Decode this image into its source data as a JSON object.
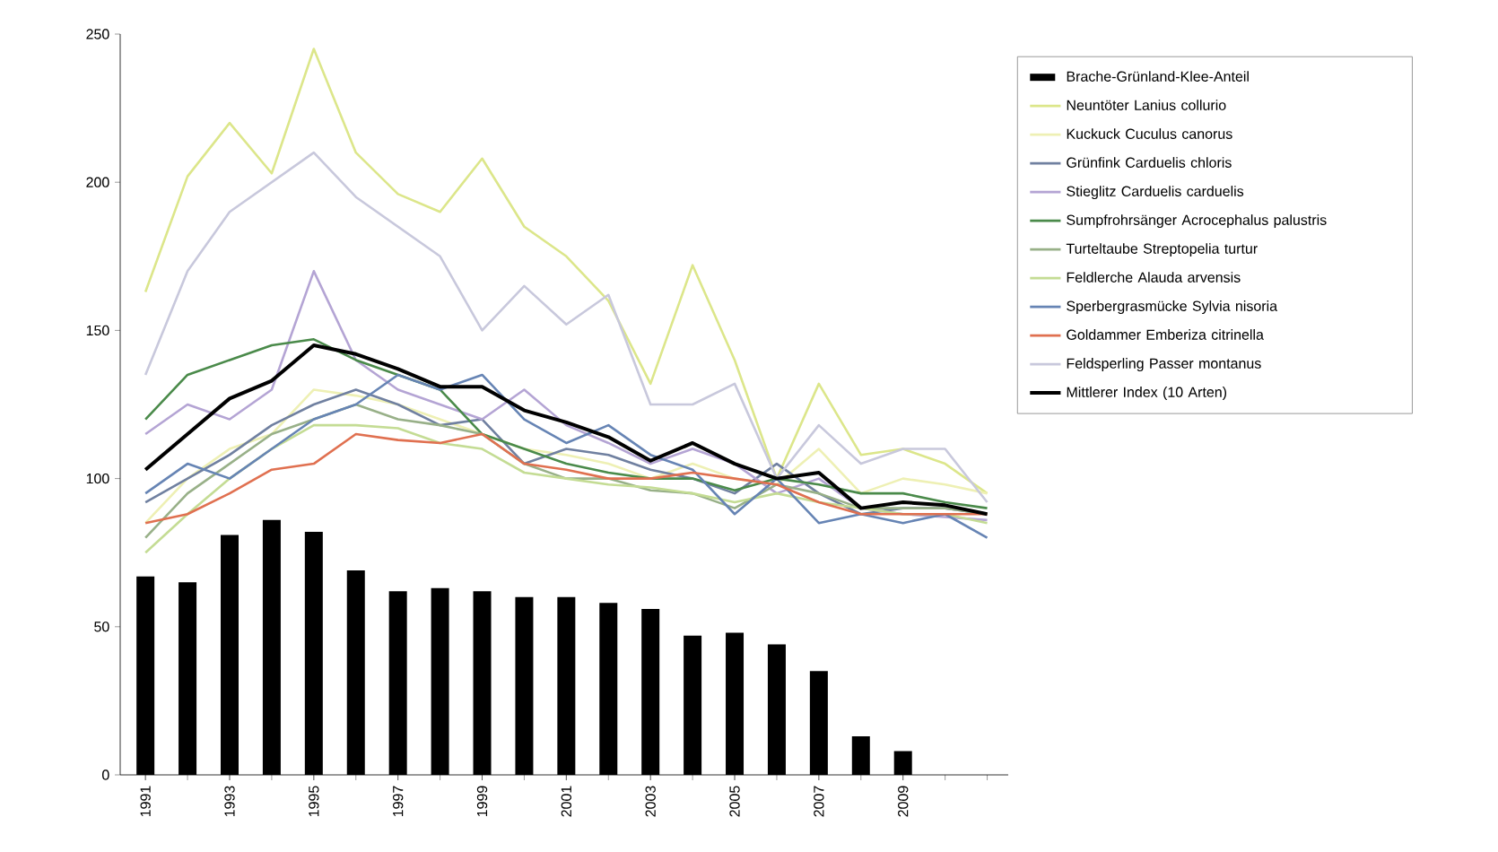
{
  "chart_data": {
    "type": "line",
    "categories": [
      "1991",
      null,
      "1993",
      null,
      "1995",
      null,
      "1997",
      null,
      "1999",
      null,
      "2001",
      null,
      "2003",
      null,
      "2005",
      null,
      "2007",
      null,
      "2009",
      null,
      null
    ],
    "ylim": [
      0,
      250
    ],
    "yticks": [
      0,
      50,
      100,
      150,
      200,
      250
    ],
    "legend": "right",
    "marker": "none",
    "line_style": "solid",
    "series": [
      {
        "name": "Brache-Grünland-Klee-Anteil",
        "type": "bar",
        "color": "#000000",
        "values": [
          67,
          65,
          81,
          86,
          82,
          69,
          62,
          63,
          62,
          60,
          60,
          58,
          56,
          47,
          48,
          44,
          35,
          13,
          8,
          null,
          null
        ]
      },
      {
        "name": "Neuntöter Lanius collurio",
        "color": "#dce68a",
        "values": [
          163,
          202,
          220,
          203,
          245,
          210,
          196,
          190,
          208,
          185,
          175,
          160,
          132,
          172,
          140,
          100,
          132,
          108,
          110,
          105,
          95
        ]
      },
      {
        "name": "Kuckuck Cuculus canorus",
        "color": "#eef0b4",
        "values": [
          85,
          100,
          110,
          115,
          130,
          128,
          125,
          120,
          115,
          110,
          108,
          105,
          100,
          105,
          100,
          98,
          110,
          95,
          100,
          98,
          95
        ]
      },
      {
        "name": "Grünfink Carduelis chloris",
        "color": "#7080a0",
        "values": [
          92,
          100,
          108,
          118,
          125,
          130,
          125,
          118,
          120,
          105,
          110,
          108,
          103,
          100,
          95,
          105,
          95,
          88,
          90,
          90,
          88
        ]
      },
      {
        "name": "Stieglitz Carduelis carduelis",
        "color": "#b4a4d4",
        "values": [
          115,
          125,
          120,
          130,
          170,
          140,
          130,
          125,
          120,
          130,
          118,
          112,
          105,
          110,
          105,
          95,
          100,
          90,
          88,
          87,
          86
        ]
      },
      {
        "name": "Sumpfrohrsänger Acrocephalus palustris",
        "color": "#4a8a4a",
        "values": [
          120,
          135,
          140,
          145,
          147,
          140,
          135,
          130,
          115,
          110,
          105,
          102,
          100,
          100,
          96,
          100,
          98,
          95,
          95,
          92,
          90
        ]
      },
      {
        "name": "Turteltaube Streptopelia turtur",
        "color": "#98b088",
        "values": [
          80,
          95,
          105,
          115,
          120,
          125,
          120,
          118,
          115,
          105,
          100,
          100,
          96,
          95,
          90,
          98,
          95,
          90,
          90,
          90,
          88
        ]
      },
      {
        "name": "Feldlerche Alauda arvensis",
        "color": "#c4dc94",
        "values": [
          75,
          88,
          100,
          110,
          118,
          118,
          117,
          112,
          110,
          102,
          100,
          98,
          97,
          95,
          92,
          95,
          92,
          90,
          88,
          88,
          85
        ]
      },
      {
        "name": "Sperbergrasmücke Sylvia nisoria",
        "color": "#6684b4",
        "values": [
          95,
          105,
          100,
          110,
          120,
          125,
          135,
          130,
          135,
          120,
          112,
          118,
          108,
          103,
          88,
          100,
          85,
          88,
          85,
          88,
          80
        ]
      },
      {
        "name": "Goldammer Emberiza citrinella",
        "color": "#e07050",
        "values": [
          85,
          88,
          95,
          103,
          105,
          115,
          113,
          112,
          115,
          105,
          103,
          100,
          100,
          102,
          100,
          98,
          92,
          88,
          88,
          88,
          88
        ]
      },
      {
        "name": "Feldsperling Passer montanus",
        "color": "#c8c8dc",
        "values": [
          135,
          170,
          190,
          200,
          210,
          195,
          185,
          175,
          150,
          165,
          152,
          162,
          125,
          125,
          132,
          100,
          118,
          105,
          110,
          110,
          92
        ]
      },
      {
        "name": "Mittlerer Index (10 Arten)",
        "color": "#000000",
        "values": [
          103,
          115,
          127,
          133,
          145,
          142,
          137,
          131,
          131,
          123,
          119,
          114,
          106,
          112,
          105,
          100,
          102,
          90,
          92,
          91,
          88
        ]
      }
    ]
  }
}
